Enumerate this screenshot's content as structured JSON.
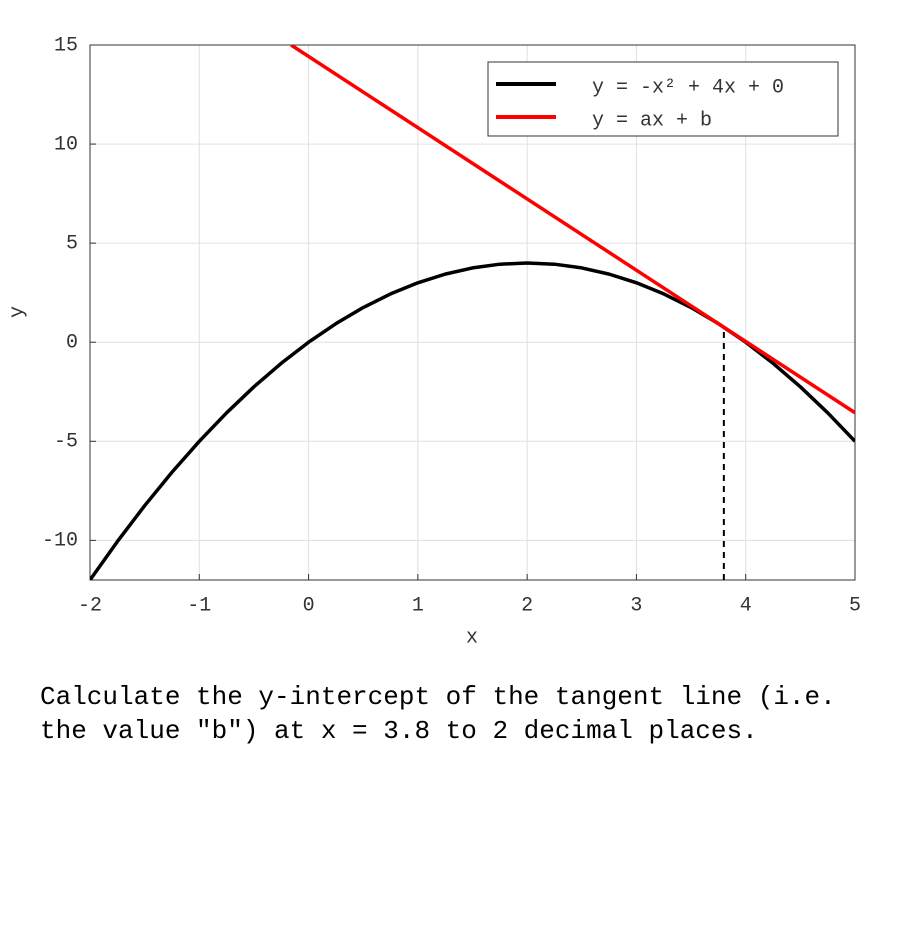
{
  "chart_data": {
    "type": "line",
    "xlabel": "x",
    "ylabel": "y",
    "xlim": [
      -2,
      5
    ],
    "ylim": [
      -12,
      15
    ],
    "xticks": [
      -2,
      -1,
      0,
      1,
      2,
      3,
      4,
      5
    ],
    "yticks": [
      -10,
      -5,
      0,
      5,
      10,
      15
    ],
    "grid": true,
    "legend": "upper right",
    "series": [
      {
        "name": "y = -x² + 4x + 0",
        "color": "#000000",
        "x": [
          -2,
          -1.75,
          -1.5,
          -1.25,
          -1,
          -0.75,
          -0.5,
          -0.25,
          0,
          0.25,
          0.5,
          0.75,
          1,
          1.25,
          1.5,
          1.75,
          2,
          2.25,
          2.5,
          2.75,
          3,
          3.25,
          3.5,
          3.75,
          4,
          4.25,
          4.5,
          4.75,
          5
        ],
        "values": [
          -12,
          -10.0625,
          -8.25,
          -6.5625,
          -5,
          -3.5625,
          -2.25,
          -1.0625,
          0,
          0.9375,
          1.75,
          2.4375,
          3,
          3.4375,
          3.75,
          3.9375,
          4,
          3.9375,
          3.75,
          3.4375,
          3,
          2.4375,
          1.75,
          0.9375,
          0,
          -1.0625,
          -2.25,
          -3.5625,
          -5
        ]
      },
      {
        "name": "y = ax + b",
        "color": "#ff0000",
        "x": [
          -0.16,
          5
        ],
        "values": [
          15,
          -3.56
        ]
      }
    ],
    "annotations": [
      {
        "x": 3.8,
        "y": 0.76
      }
    ]
  },
  "question": "Calculate the y-intercept of the tangent line (i.e. the value \"b\") at x = 3.8 to 2 decimal places."
}
